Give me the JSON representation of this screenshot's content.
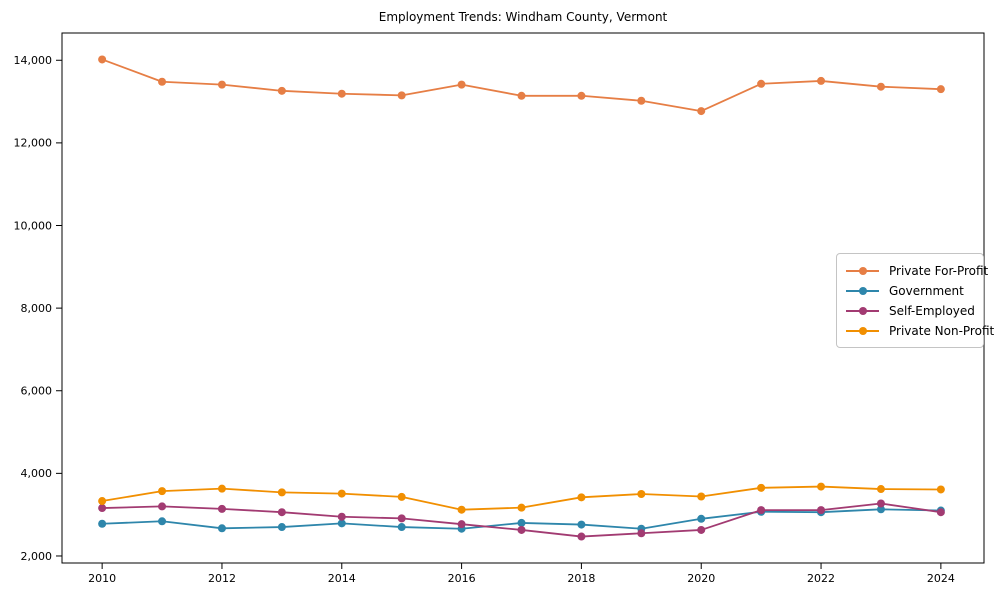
{
  "title": "Employment Trends: Windham County, Vermont",
  "chart_data": {
    "type": "line",
    "title": "Employment Trends: Windham County, Vermont",
    "xlabel": "",
    "ylabel": "",
    "grid": false,
    "legend_position": "center-right",
    "x": [
      2010,
      2011,
      2012,
      2013,
      2014,
      2015,
      2016,
      2017,
      2018,
      2019,
      2020,
      2021,
      2022,
      2023,
      2024
    ],
    "series": [
      {
        "name": "Private For-Profit",
        "color": "#e67e45",
        "values": [
          14020,
          13480,
          13410,
          13260,
          13190,
          13150,
          13410,
          13140,
          13140,
          13020,
          12770,
          13430,
          13500,
          13360,
          13300
        ]
      },
      {
        "name": "Government",
        "color": "#2e86ab",
        "values": [
          2780,
          2840,
          2670,
          2700,
          2790,
          2700,
          2660,
          2800,
          2760,
          2660,
          2900,
          3070,
          3060,
          3130,
          3100
        ]
      },
      {
        "name": "Self-Employed",
        "color": "#a23b72",
        "values": [
          3160,
          3200,
          3140,
          3060,
          2950,
          2910,
          2770,
          2630,
          2470,
          2550,
          2630,
          3110,
          3110,
          3270,
          3060
        ]
      },
      {
        "name": "Private Non-Profit",
        "color": "#f18f01",
        "values": [
          3330,
          3570,
          3630,
          3540,
          3510,
          3430,
          3120,
          3170,
          3420,
          3500,
          3440,
          3650,
          3680,
          3620,
          3610
        ]
      }
    ],
    "xticks": [
      2010,
      2012,
      2014,
      2016,
      2018,
      2020,
      2022,
      2024
    ],
    "yticks": [
      2000,
      4000,
      6000,
      8000,
      10000,
      12000,
      14000
    ],
    "xlim": [
      2009.33,
      2024.72
    ],
    "ylim": [
      1830,
      14660
    ]
  }
}
